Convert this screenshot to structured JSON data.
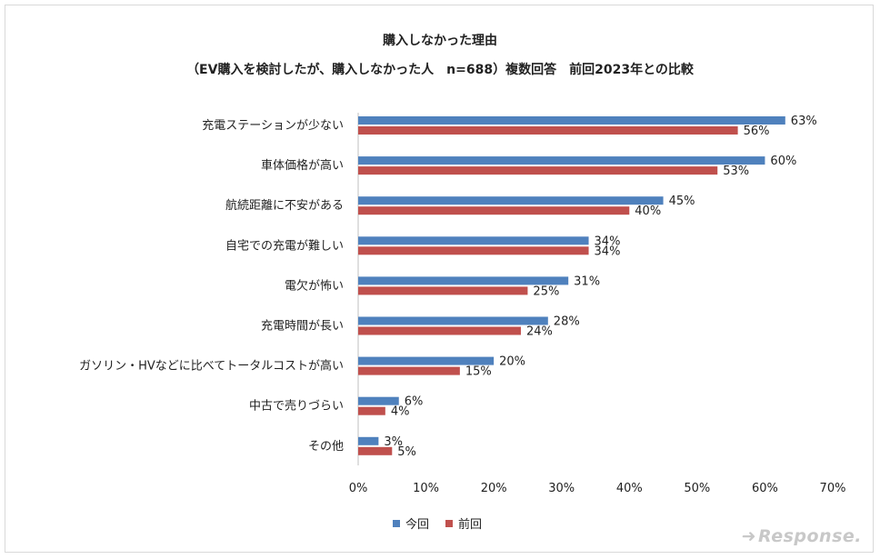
{
  "title_line1": "購入しなかった理由",
  "title_line2": "（EV購入を検討したが、購入しなかった人　n=688）複数回答　前回2023年との比較",
  "watermark": "Response.",
  "colors": {
    "current": "#4f81bd",
    "previous": "#c0504d"
  },
  "chart_data": {
    "type": "bar",
    "orientation": "horizontal",
    "title": "購入しなかった理由",
    "subtitle": "（EV購入を検討したが、購入しなかった人　n=688）複数回答　前回2023年との比較",
    "categories": [
      "充電ステーションが少ない",
      "車体価格が高い",
      "航続距離に不安がある",
      "自宅での充電が難しい",
      "電欠が怖い",
      "充電時間が長い",
      "ガソリン・HVなどに比べてトータルコストが高い",
      "中古で売りづらい",
      "その他"
    ],
    "series": [
      {
        "name": "今回",
        "values": [
          63,
          60,
          45,
          34,
          31,
          28,
          20,
          6,
          3
        ]
      },
      {
        "name": "前回",
        "values": [
          56,
          53,
          40,
          34,
          25,
          24,
          15,
          4,
          5
        ]
      }
    ],
    "value_labels": [
      [
        "63%",
        "60%",
        "45%",
        "34%",
        "31%",
        "28%",
        "20%",
        "6%",
        "3%"
      ],
      [
        "56%",
        "53%",
        "40%",
        "34%",
        "25%",
        "24%",
        "15%",
        "4%",
        "5%"
      ]
    ],
    "xlim": [
      0,
      70
    ],
    "xticks": [
      "0%",
      "10%",
      "20%",
      "30%",
      "40%",
      "50%",
      "60%",
      "70%"
    ],
    "grid": false,
    "legend_position": "bottom"
  }
}
